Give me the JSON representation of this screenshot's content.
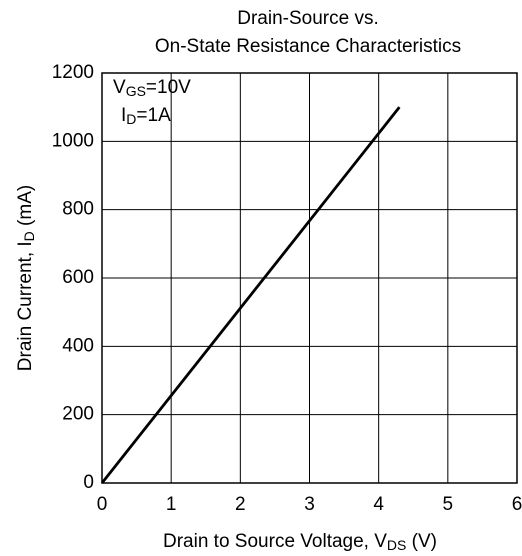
{
  "chart_data": {
    "type": "line",
    "title": [
      "Drain-Source vs.",
      "On-State Resistance Characteristics"
    ],
    "xlabel": [
      "Drain to Source Voltage, V",
      "DS",
      " (V)"
    ],
    "ylabel": [
      "Drain Current, I",
      "D",
      " (mA)"
    ],
    "annotations": [
      [
        "V",
        "GS",
        "=10V"
      ],
      [
        "I",
        "D",
        "=1A"
      ]
    ],
    "x": [
      0,
      4.3
    ],
    "series": [
      {
        "name": null,
        "color": "#000000",
        "values": [
          0,
          1100
        ]
      }
    ],
    "xlim": [
      0,
      6
    ],
    "ylim": [
      0,
      1200
    ],
    "xticks": [
      0,
      1,
      2,
      3,
      4,
      5,
      6
    ],
    "yticks": [
      0,
      200,
      400,
      600,
      800,
      1000,
      1200
    ],
    "grid": true
  }
}
